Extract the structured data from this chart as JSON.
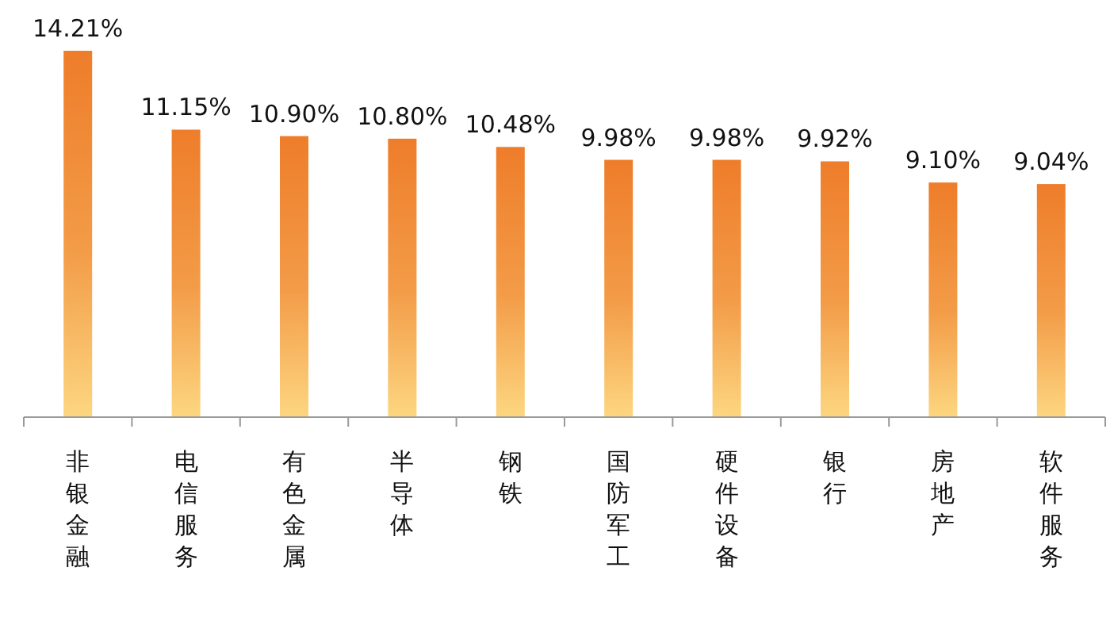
{
  "chart_data": {
    "type": "bar",
    "categories": [
      "非银金融",
      "电信服务",
      "有色金属",
      "半导体",
      "钢铁",
      "国防军工",
      "硬件设备",
      "银行",
      "房地产",
      "软件服务"
    ],
    "values": [
      14.21,
      11.15,
      10.9,
      10.8,
      10.48,
      9.98,
      9.98,
      9.92,
      9.1,
      9.04
    ],
    "value_labels": [
      "14.21%",
      "11.15%",
      "10.90%",
      "10.80%",
      "10.48%",
      "9.98%",
      "9.98%",
      "9.92%",
      "9.10%",
      "9.04%"
    ],
    "color": "#ee7d2a"
  }
}
